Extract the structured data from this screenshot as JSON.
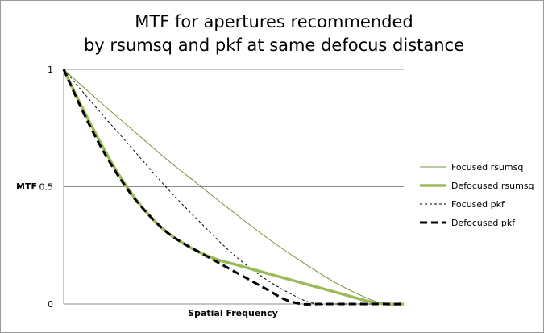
{
  "chart_data": {
    "type": "line",
    "title": {
      "line1": "MTF for apertures recommended",
      "line2": "by rsumsq and pkf at same defocus distance"
    },
    "xlabel": "Spatial Frequency",
    "ylabel": "MTF",
    "xlim": [
      0,
      1
    ],
    "ylim": [
      0,
      1
    ],
    "yticks": [
      {
        "value": 0,
        "label": "0"
      },
      {
        "value": 0.5,
        "label": "0.5"
      },
      {
        "value": 1,
        "label": "1"
      }
    ],
    "grid": true,
    "legend_position": "right",
    "series": [
      {
        "name": "Focused rsumsq",
        "color": "#77933c",
        "style": "thin-solid",
        "x": [
          0,
          0.1,
          0.2,
          0.3,
          0.4,
          0.5,
          0.6,
          0.7,
          0.8,
          0.9,
          0.95,
          1.0
        ],
        "y": [
          1.0,
          0.87,
          0.745,
          0.62,
          0.505,
          0.39,
          0.28,
          0.18,
          0.09,
          0.02,
          0.0,
          0.0
        ]
      },
      {
        "name": "Defocused rsumsq",
        "color": "#9bbb59",
        "style": "thick-solid",
        "x": [
          0,
          0.05,
          0.1,
          0.15,
          0.2,
          0.25,
          0.3,
          0.35,
          0.4,
          0.45,
          0.5,
          0.55,
          0.6,
          0.7,
          0.8,
          0.9,
          0.95,
          1.0
        ],
        "y": [
          1.0,
          0.85,
          0.71,
          0.58,
          0.47,
          0.38,
          0.31,
          0.26,
          0.22,
          0.19,
          0.17,
          0.15,
          0.13,
          0.09,
          0.05,
          0.01,
          0.0,
          0.0
        ]
      },
      {
        "name": "Focused pkf",
        "color": "#000000",
        "style": "thin-dashed",
        "x": [
          0,
          0.1,
          0.2,
          0.3,
          0.4,
          0.5,
          0.6,
          0.7,
          0.75,
          0.8,
          1.0
        ],
        "y": [
          1.0,
          0.83,
          0.665,
          0.5,
          0.35,
          0.21,
          0.1,
          0.02,
          0.0,
          0.0,
          0.0
        ]
      },
      {
        "name": "Defocused pkf",
        "color": "#000000",
        "style": "thick-dashed",
        "x": [
          0,
          0.05,
          0.1,
          0.15,
          0.2,
          0.25,
          0.3,
          0.35,
          0.4,
          0.45,
          0.5,
          0.55,
          0.6,
          0.65,
          0.7,
          0.75,
          0.8,
          1.0
        ],
        "y": [
          1.0,
          0.84,
          0.695,
          0.57,
          0.465,
          0.38,
          0.31,
          0.26,
          0.22,
          0.18,
          0.14,
          0.1,
          0.06,
          0.02,
          0.0,
          0.0,
          0.0,
          0.0
        ]
      }
    ]
  }
}
